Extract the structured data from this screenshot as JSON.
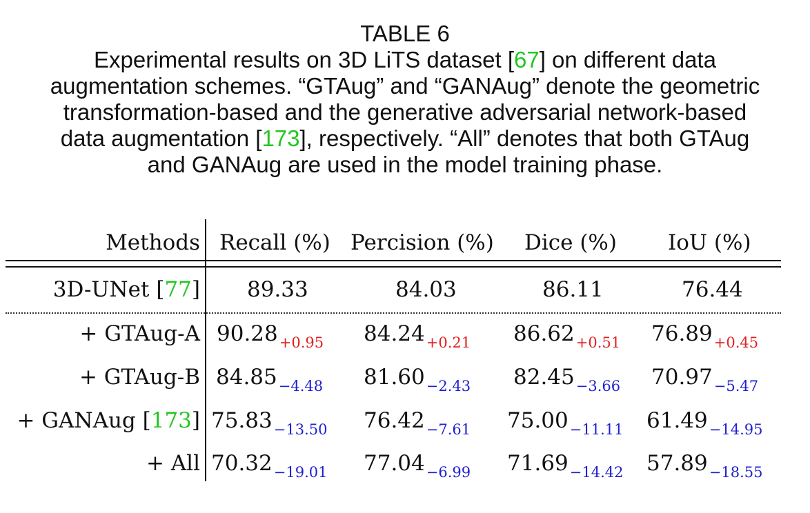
{
  "caption": {
    "label": "TABLE 6",
    "line1_pre": "Experimental results on 3D LiTS dataset [",
    "line1_cite": "67",
    "line1_post": "] on different data",
    "line2": "augmentation schemes. “GTAug” and “GANAug” denote the geometric",
    "line3": "transformation-based and the generative adversarial network-based",
    "line4_pre": "data augmentation [",
    "line4_cite": "173",
    "line4_post": "], respectively. “All” denotes that both GTAug",
    "line5": "and GANAug are used in the model training phase."
  },
  "table": {
    "headers": [
      "Methods",
      "Recall (%)",
      "Percision (%)",
      "Dice (%)",
      "IoU (%)"
    ],
    "baseline": {
      "method": "3D-UNet [",
      "cite": "77",
      "method_post": "]",
      "values": [
        "89.33",
        "84.03",
        "86.11",
        "76.44"
      ]
    },
    "rows": [
      {
        "method": "+ GTAug-A",
        "cite": "",
        "method_post": "",
        "values": [
          "90.28",
          "84.24",
          "86.62",
          "76.89"
        ],
        "deltas": [
          "+0.95",
          "+0.21",
          "+0.51",
          "+0.45"
        ],
        "direction": "up"
      },
      {
        "method": "+ GTAug-B",
        "cite": "",
        "method_post": "",
        "values": [
          "84.85",
          "81.60",
          "82.45",
          "70.97"
        ],
        "deltas": [
          "−4.48",
          "−2.43",
          "−3.66",
          "−5.47"
        ],
        "direction": "down"
      },
      {
        "method": "+ GANAug [",
        "cite": "173",
        "method_post": "]",
        "values": [
          "75.83",
          "76.42",
          "75.00",
          "61.49"
        ],
        "deltas": [
          "−13.50",
          "−7.61",
          "−11.11",
          "−14.95"
        ],
        "direction": "down"
      },
      {
        "method": "+ All",
        "cite": "",
        "method_post": "",
        "values": [
          "70.32",
          "77.04",
          "71.69",
          "57.89"
        ],
        "deltas": [
          "−19.01",
          "−6.99",
          "−14.42",
          "−18.55"
        ],
        "direction": "down"
      }
    ]
  },
  "colors": {
    "citation": "#22c622",
    "increase": "#e02020",
    "decrease": "#2020d0"
  }
}
